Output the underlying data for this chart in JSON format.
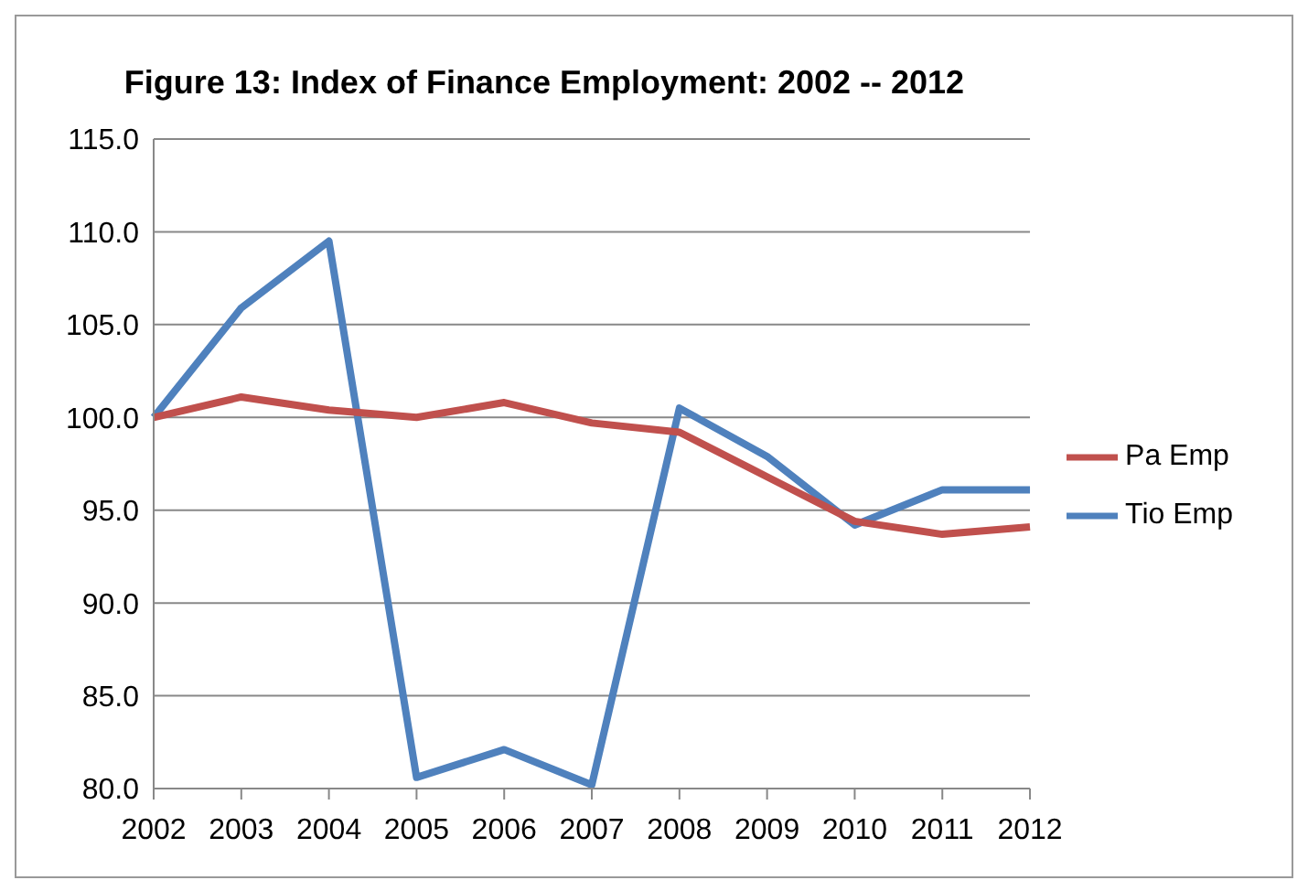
{
  "chart_data": {
    "type": "line",
    "title": "Figure 13: Index of Finance Employment: 2002  -- 2012",
    "categories": [
      "2002",
      "2003",
      "2004",
      "2005",
      "2006",
      "2007",
      "2008",
      "2009",
      "2010",
      "2011",
      "2012"
    ],
    "series": [
      {
        "name": "Tio Emp",
        "color": "#4f81bd",
        "values": [
          100.0,
          105.9,
          109.5,
          80.6,
          82.1,
          80.2,
          100.5,
          97.9,
          94.2,
          96.1,
          96.1
        ]
      },
      {
        "name": "Pa Emp",
        "color": "#c0504d",
        "values": [
          100.0,
          101.1,
          100.4,
          100.0,
          100.8,
          99.7,
          99.2,
          96.8,
          94.4,
          93.7,
          94.1
        ]
      }
    ],
    "ylim": [
      80,
      115
    ],
    "yticks": [
      {
        "value": 80,
        "label": "80.0"
      },
      {
        "value": 85,
        "label": "85.0"
      },
      {
        "value": 90,
        "label": "90.0"
      },
      {
        "value": 95,
        "label": "95.0"
      },
      {
        "value": 100,
        "label": "100.0"
      },
      {
        "value": 105,
        "label": "105.0"
      },
      {
        "value": 110,
        "label": "110.0"
      },
      {
        "value": 115,
        "label": "115.0"
      }
    ],
    "grid": "y",
    "legend": "right",
    "marker": "none",
    "line_style": "solid"
  }
}
